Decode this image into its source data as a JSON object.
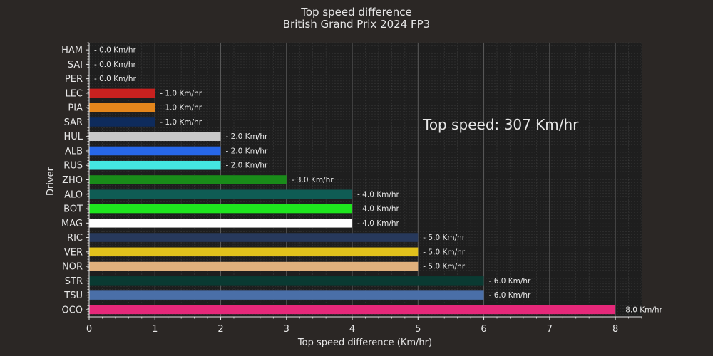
{
  "chart_data": {
    "type": "bar",
    "orientation": "horizontal",
    "title": "Top speed difference",
    "subtitle": "British Grand Prix 2024 FP3",
    "xlabel": "Top speed difference (Km/hr)",
    "ylabel": "Driver",
    "annotation": "Top speed: 307 Km/hr",
    "label_prefix": "- ",
    "label_suffix": " Km/hr",
    "xlim": [
      0,
      8.4
    ],
    "xticks": [
      "0",
      "1",
      "2",
      "3",
      "4",
      "5",
      "6",
      "7",
      "8"
    ],
    "grid": true,
    "categories": [
      "HAM",
      "SAI",
      "PER",
      "LEC",
      "PIA",
      "SAR",
      "HUL",
      "ALB",
      "RUS",
      "ZHO",
      "ALO",
      "BOT",
      "MAG",
      "RIC",
      "VER",
      "NOR",
      "STR",
      "TSU",
      "OCO"
    ],
    "values": [
      0,
      0,
      0,
      1,
      1,
      1,
      2,
      2,
      2,
      3,
      4,
      4,
      4,
      5,
      5,
      5,
      6,
      6,
      8
    ],
    "data_labels": [
      "- 0.0 Km/hr",
      "- 0.0 Km/hr",
      "- 0.0 Km/hr",
      "- 1.0 Km/hr",
      "- 1.0 Km/hr",
      "- 1.0 Km/hr",
      "- 2.0 Km/hr",
      "- 2.0 Km/hr",
      "- 2.0 Km/hr",
      "- 3.0 Km/hr",
      "- 4.0 Km/hr",
      "- 4.0 Km/hr",
      "- 4.0 Km/hr",
      "- 5.0 Km/hr",
      "- 5.0 Km/hr",
      "- 5.0 Km/hr",
      "- 6.0 Km/hr",
      "- 6.0 Km/hr",
      "- 8.0 Km/hr"
    ],
    "colors": [
      "#00d2be",
      "#dc0000",
      "#1e41ff",
      "#c8211f",
      "#e4861c",
      "#0e2b5c",
      "#c8c8c8",
      "#2767e8",
      "#44e6e1",
      "#198c19",
      "#0f5c54",
      "#1ee61e",
      "#ffffff",
      "#27395c",
      "#e2c21c",
      "#e0b07c",
      "#0a3a32",
      "#4a6fa8",
      "#e6287a"
    ],
    "colors_theme": {
      "background": "#2b2725",
      "plot_background": "#1e1e1e",
      "text": "#e6e6e6",
      "grid_major": "#5a5a5a",
      "grid_minor": "#3a3a3a"
    }
  }
}
